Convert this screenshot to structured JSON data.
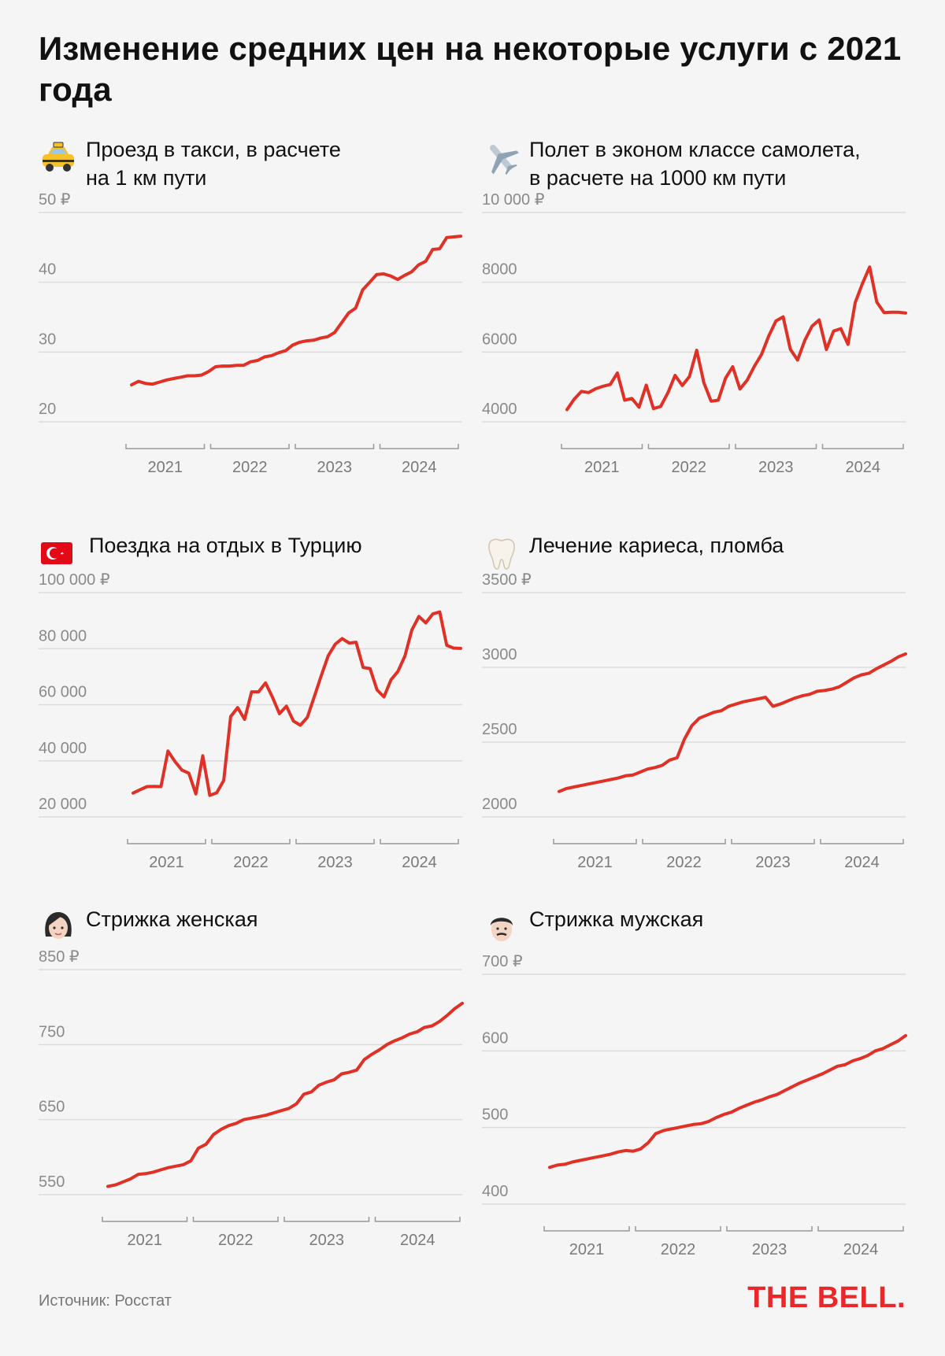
{
  "title": "Изменение средних цен на некоторые услуги с 2021 года",
  "source": "Источник: Росстат",
  "brand": "THE BELL.",
  "colors": {
    "line": "#e03127",
    "brand": "#e8282a",
    "background": "#f5f5f5"
  },
  "panels": [
    {
      "title": "Проезд в такси, в расчете\nна 1 км пути",
      "icon": "taxi-icon",
      "chart_data": {
        "type": "line",
        "years": [
          "2021",
          "2022",
          "2023",
          "2024"
        ],
        "ylim": [
          20,
          50
        ],
        "y_ticks": [
          "20",
          "30",
          "40",
          "50 ₽"
        ],
        "x": [
          1,
          2,
          3,
          4,
          5,
          6,
          7,
          8,
          9,
          10,
          11,
          12,
          13,
          14,
          15,
          16,
          17,
          18,
          19,
          20,
          21,
          22,
          23,
          24,
          25,
          26,
          27,
          28,
          29,
          30,
          31,
          32,
          33,
          34,
          35,
          36,
          37,
          38,
          39,
          40,
          41,
          42,
          43,
          44,
          45,
          46,
          47,
          48
        ],
        "values": [
          25.3,
          25.8,
          25.5,
          25.4,
          25.7,
          26.0,
          26.2,
          26.4,
          26.6,
          26.6,
          26.7,
          27.2,
          27.9,
          28.0,
          28.0,
          28.1,
          28.1,
          28.6,
          28.8,
          29.3,
          29.5,
          29.9,
          30.2,
          31.0,
          31.4,
          31.6,
          31.7,
          32.0,
          32.2,
          32.8,
          34.2,
          35.6,
          36.3,
          38.9,
          40.0,
          41.1,
          41.2,
          40.9,
          40.4,
          41.0,
          41.5,
          42.5,
          43.0,
          44.7,
          44.8,
          46.4,
          46.5,
          46.6
        ]
      }
    },
    {
      "title": "Полет в эконом классе самолета,\nв расчете на 1000 км пути",
      "icon": "airplane-icon",
      "chart_data": {
        "type": "line",
        "years": [
          "2021",
          "2022",
          "2023",
          "2024"
        ],
        "ylim": [
          4000,
          10000
        ],
        "y_ticks": [
          "4000",
          "6000",
          "8000",
          "10 000 ₽"
        ],
        "x": [
          1,
          2,
          3,
          4,
          5,
          6,
          7,
          8,
          9,
          10,
          11,
          12,
          13,
          14,
          15,
          16,
          17,
          18,
          19,
          20,
          21,
          22,
          23,
          24,
          25,
          26,
          27,
          28,
          29,
          30,
          31,
          32,
          33,
          34,
          35,
          36,
          37,
          38,
          39,
          40,
          41,
          42,
          43,
          44,
          45,
          46,
          47,
          48
        ],
        "values": [
          4350,
          4650,
          4870,
          4840,
          4950,
          5020,
          5070,
          5400,
          4620,
          4670,
          4420,
          5050,
          4380,
          4440,
          4830,
          5330,
          5040,
          5300,
          6050,
          5120,
          4590,
          4620,
          5250,
          5580,
          4940,
          5190,
          5590,
          5930,
          6460,
          6890,
          7010,
          6080,
          5770,
          6330,
          6740,
          6920,
          6070,
          6600,
          6670,
          6220,
          7420,
          7960,
          8440,
          7430,
          7130,
          7140,
          7140,
          7120
        ]
      }
    },
    {
      "title": "Поездка на отдых в Турцию",
      "icon": "turkey-flag-icon",
      "chart_data": {
        "type": "line",
        "years": [
          "2021",
          "2022",
          "2023",
          "2024"
        ],
        "ylim": [
          20000,
          100000
        ],
        "y_ticks": [
          "20 000",
          "40 000",
          "60 000",
          "80 000",
          "100 000 ₽"
        ],
        "x": [
          1,
          2,
          3,
          4,
          5,
          6,
          7,
          8,
          9,
          10,
          11,
          12,
          13,
          14,
          15,
          16,
          17,
          18,
          19,
          20,
          21,
          22,
          23,
          24,
          25,
          26,
          27,
          28,
          29,
          30,
          31,
          32,
          33,
          34,
          35,
          36,
          37,
          38,
          39,
          40,
          41,
          42,
          43,
          44,
          45,
          46,
          47,
          48
        ],
        "values": [
          28500,
          29700,
          30800,
          30900,
          30800,
          43500,
          39800,
          36700,
          35600,
          28200,
          41800,
          27700,
          28600,
          33000,
          55800,
          59000,
          54800,
          64600,
          64600,
          67800,
          62700,
          56800,
          59500,
          54200,
          52700,
          55500,
          62900,
          70400,
          77500,
          81600,
          83600,
          82000,
          82300,
          73300,
          72900,
          65300,
          62800,
          68900,
          71900,
          77400,
          86700,
          91500,
          89200,
          92400,
          93100,
          81200,
          80200,
          80100
        ]
      }
    },
    {
      "title": "Лечение кариеса, пломба",
      "icon": "tooth-icon",
      "chart_data": {
        "type": "line",
        "years": [
          "2021",
          "2022",
          "2023",
          "2024"
        ],
        "ylim": [
          2000,
          3500
        ],
        "y_ticks": [
          "2000",
          "2500",
          "3000",
          "3500 ₽"
        ],
        "x": [
          1,
          2,
          3,
          4,
          5,
          6,
          7,
          8,
          9,
          10,
          11,
          12,
          13,
          14,
          15,
          16,
          17,
          18,
          19,
          20,
          21,
          22,
          23,
          24,
          25,
          26,
          27,
          28,
          29,
          30,
          31,
          32,
          33,
          34,
          35,
          36,
          37,
          38,
          39,
          40,
          41,
          42,
          43,
          44,
          45,
          46,
          47,
          48
        ],
        "values": [
          2170,
          2190,
          2200,
          2210,
          2220,
          2230,
          2240,
          2250,
          2260,
          2275,
          2280,
          2300,
          2320,
          2330,
          2345,
          2380,
          2395,
          2520,
          2610,
          2660,
          2680,
          2700,
          2710,
          2740,
          2755,
          2770,
          2780,
          2790,
          2800,
          2740,
          2755,
          2775,
          2795,
          2810,
          2820,
          2840,
          2845,
          2855,
          2870,
          2900,
          2930,
          2950,
          2960,
          2990,
          3015,
          3040,
          3070,
          3090
        ]
      }
    },
    {
      "title": "Стрижка женская",
      "icon": "woman-icon",
      "chart_data": {
        "type": "line",
        "years": [
          "2021",
          "2022",
          "2023",
          "2024"
        ],
        "ylim": [
          550,
          850
        ],
        "y_ticks": [
          "550",
          "650",
          "750",
          "850 ₽"
        ],
        "x": [
          1,
          2,
          3,
          4,
          5,
          6,
          7,
          8,
          9,
          10,
          11,
          12,
          13,
          14,
          15,
          16,
          17,
          18,
          19,
          20,
          21,
          22,
          23,
          24,
          25,
          26,
          27,
          28,
          29,
          30,
          31,
          32,
          33,
          34,
          35,
          36,
          37,
          38,
          39,
          40,
          41,
          42,
          43,
          44,
          45,
          46,
          47,
          48
        ],
        "values": [
          561,
          563,
          567,
          571,
          577,
          578,
          580,
          583,
          586,
          588,
          590,
          595,
          612,
          617,
          630,
          637,
          642,
          645,
          650,
          652,
          654,
          656,
          659,
          662,
          665,
          671,
          684,
          687,
          696,
          700,
          703,
          711,
          713,
          716,
          730,
          737,
          743,
          750,
          755,
          759,
          764,
          767,
          773,
          775,
          781,
          789,
          798,
          805
        ]
      }
    },
    {
      "title": "Стрижка мужская",
      "icon": "man-icon",
      "chart_data": {
        "type": "line",
        "years": [
          "2021",
          "2022",
          "2023",
          "2024"
        ],
        "ylim": [
          400,
          700
        ],
        "y_ticks": [
          "400",
          "500",
          "600",
          "700 ₽"
        ],
        "x": [
          1,
          2,
          3,
          4,
          5,
          6,
          7,
          8,
          9,
          10,
          11,
          12,
          13,
          14,
          15,
          16,
          17,
          18,
          19,
          20,
          21,
          22,
          23,
          24,
          25,
          26,
          27,
          28,
          29,
          30,
          31,
          32,
          33,
          34,
          35,
          36,
          37,
          38,
          39,
          40,
          41,
          42,
          43,
          44,
          45,
          46,
          47,
          48
        ],
        "values": [
          448,
          451,
          452,
          455,
          457,
          459,
          461,
          463,
          465,
          468,
          470,
          469,
          472,
          480,
          492,
          496,
          498,
          500,
          502,
          504,
          505,
          508,
          513,
          517,
          520,
          525,
          529,
          533,
          536,
          540,
          543,
          548,
          553,
          558,
          562,
          566,
          570,
          575,
          580,
          582,
          587,
          590,
          594,
          600,
          603,
          608,
          613,
          620
        ]
      }
    }
  ]
}
